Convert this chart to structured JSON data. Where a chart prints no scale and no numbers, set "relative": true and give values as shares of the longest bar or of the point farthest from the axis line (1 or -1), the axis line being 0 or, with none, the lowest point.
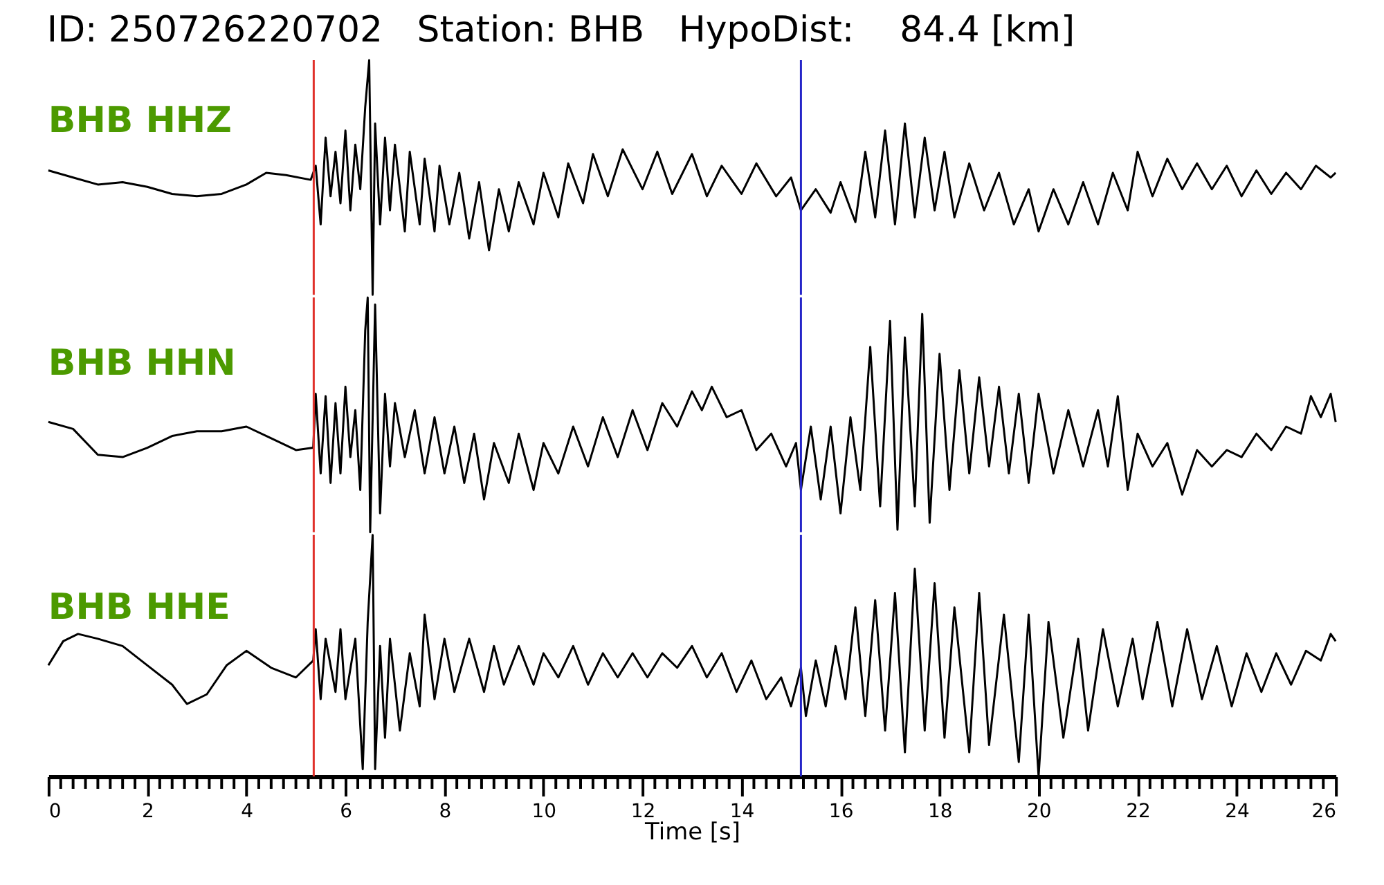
{
  "chart_data": [
    {
      "type": "line",
      "title": "ID: 250726220702   Station: BHB   HypoDist:    84.4 [km]",
      "relative": true,
      "xlim": [
        0,
        26
      ],
      "tick_labels": false,
      "x": [
        0,
        0.5,
        1.0,
        1.5,
        2.0,
        2.5,
        3.0,
        3.5,
        4.0,
        4.4,
        4.8,
        5.3,
        5.4,
        5.5,
        5.6,
        5.7,
        5.8,
        5.9,
        6.0,
        6.1,
        6.2,
        6.3,
        6.4,
        6.48,
        6.55,
        6.6,
        6.7,
        6.8,
        6.9,
        7.0,
        7.2,
        7.3,
        7.5,
        7.6,
        7.8,
        7.9,
        8.1,
        8.3,
        8.5,
        8.7,
        8.9,
        9.1,
        9.3,
        9.5,
        9.8,
        10.0,
        10.3,
        10.5,
        10.8,
        11.0,
        11.3,
        11.6,
        12.0,
        12.3,
        12.6,
        13.0,
        13.3,
        13.6,
        14.0,
        14.3,
        14.7,
        15.0,
        15.2,
        15.5,
        15.8,
        16.0,
        16.3,
        16.5,
        16.7,
        16.9,
        17.1,
        17.3,
        17.5,
        17.7,
        17.9,
        18.1,
        18.3,
        18.6,
        18.9,
        19.2,
        19.5,
        19.8,
        20.0,
        20.3,
        20.6,
        20.9,
        21.2,
        21.5,
        21.8,
        22.0,
        22.3,
        22.6,
        22.9,
        23.2,
        23.5,
        23.8,
        24.1,
        24.4,
        24.7,
        25.0,
        25.3,
        25.6,
        25.9,
        26.0
      ],
      "series": [
        {
          "name": "BHB HHZ",
          "color": "#000000",
          "values": [
            0.53,
            0.5,
            0.47,
            0.48,
            0.46,
            0.43,
            0.42,
            0.43,
            0.47,
            0.52,
            0.51,
            0.49,
            0.55,
            0.3,
            0.67,
            0.42,
            0.61,
            0.39,
            0.7,
            0.36,
            0.64,
            0.45,
            0.8,
            1.0,
            0,
            0.73,
            0.3,
            0.67,
            0.36,
            0.64,
            0.27,
            0.61,
            0.3,
            0.58,
            0.27,
            0.55,
            0.3,
            0.52,
            0.24,
            0.48,
            0.19,
            0.45,
            0.27,
            0.48,
            0.3,
            0.52,
            0.33,
            0.56,
            0.39,
            0.6,
            0.42,
            0.62,
            0.45,
            0.61,
            0.43,
            0.6,
            0.42,
            0.55,
            0.43,
            0.56,
            0.42,
            0.5,
            0.36,
            0.45,
            0.35,
            0.48,
            0.31,
            0.61,
            0.33,
            0.7,
            0.3,
            0.73,
            0.33,
            0.67,
            0.36,
            0.61,
            0.33,
            0.56,
            0.36,
            0.52,
            0.3,
            0.45,
            0.27,
            0.45,
            0.3,
            0.48,
            0.3,
            0.52,
            0.36,
            0.61,
            0.42,
            0.58,
            0.45,
            0.56,
            0.45,
            0.55,
            0.42,
            0.53,
            0.43,
            0.52,
            0.45,
            0.55,
            0.5,
            0.52
          ]
        }
      ],
      "ref_lines": [
        {
          "axis": "x",
          "value": 5.36,
          "color": "#e0302a"
        },
        {
          "axis": "x",
          "value": 15.2,
          "color": "#2424c8"
        }
      ]
    },
    {
      "type": "line",
      "relative": true,
      "xlim": [
        0,
        26
      ],
      "tick_labels": false,
      "x": [
        0,
        0.5,
        1.0,
        1.5,
        2.0,
        2.5,
        3.0,
        3.5,
        4.0,
        4.5,
        5.0,
        5.35,
        5.4,
        5.5,
        5.6,
        5.7,
        5.8,
        5.9,
        6.0,
        6.1,
        6.2,
        6.3,
        6.4,
        6.45,
        6.5,
        6.6,
        6.7,
        6.8,
        6.9,
        7.0,
        7.2,
        7.4,
        7.6,
        7.8,
        8.0,
        8.2,
        8.4,
        8.6,
        8.8,
        9.0,
        9.3,
        9.5,
        9.8,
        10.0,
        10.3,
        10.6,
        10.9,
        11.2,
        11.5,
        11.8,
        12.1,
        12.4,
        12.7,
        13.0,
        13.2,
        13.4,
        13.7,
        14.0,
        14.3,
        14.6,
        14.9,
        15.1,
        15.2,
        15.4,
        15.6,
        15.8,
        16.0,
        16.2,
        16.4,
        16.6,
        16.8,
        17.0,
        17.15,
        17.3,
        17.5,
        17.65,
        17.8,
        18.0,
        18.2,
        18.4,
        18.6,
        18.8,
        19.0,
        19.2,
        19.4,
        19.6,
        19.8,
        20.0,
        20.3,
        20.6,
        20.9,
        21.2,
        21.4,
        21.6,
        21.8,
        22.0,
        22.3,
        22.6,
        22.9,
        23.2,
        23.5,
        23.8,
        24.1,
        24.4,
        24.7,
        25.0,
        25.3,
        25.5,
        25.7,
        25.9,
        26.0
      ],
      "series": [
        {
          "name": "BHB HHN",
          "color": "#000000",
          "values": [
            0.47,
            0.44,
            0.33,
            0.32,
            0.36,
            0.41,
            0.43,
            0.43,
            0.45,
            0.4,
            0.35,
            0.36,
            0.59,
            0.25,
            0.58,
            0.21,
            0.55,
            0.25,
            0.62,
            0.32,
            0.52,
            0.18,
            0.86,
            1.0,
            0,
            0.97,
            0.08,
            0.59,
            0.28,
            0.55,
            0.32,
            0.52,
            0.25,
            0.49,
            0.25,
            0.45,
            0.21,
            0.42,
            0.14,
            0.38,
            0.21,
            0.42,
            0.18,
            0.38,
            0.25,
            0.45,
            0.28,
            0.49,
            0.32,
            0.52,
            0.35,
            0.55,
            0.45,
            0.6,
            0.52,
            0.62,
            0.49,
            0.52,
            0.35,
            0.42,
            0.28,
            0.38,
            0.18,
            0.45,
            0.14,
            0.45,
            0.08,
            0.49,
            0.18,
            0.79,
            0.11,
            0.9,
            0.01,
            0.83,
            0.11,
            0.93,
            0.04,
            0.76,
            0.18,
            0.69,
            0.25,
            0.66,
            0.28,
            0.62,
            0.25,
            0.59,
            0.21,
            0.59,
            0.25,
            0.52,
            0.28,
            0.52,
            0.28,
            0.58,
            0.18,
            0.42,
            0.28,
            0.38,
            0.16,
            0.35,
            0.28,
            0.35,
            0.32,
            0.42,
            0.35,
            0.45,
            0.42,
            0.58,
            0.49,
            0.59,
            0.47
          ]
        }
      ],
      "ref_lines": [
        {
          "axis": "x",
          "value": 5.36,
          "color": "#e0302a"
        },
        {
          "axis": "x",
          "value": 15.2,
          "color": "#2424c8"
        }
      ]
    },
    {
      "type": "line",
      "xlabel": "Time [s]",
      "relative": true,
      "xlim": [
        0,
        26
      ],
      "tick_labels": "x",
      "xticks": [
        0,
        {
          "value": 0.25,
          "label": null
        },
        {
          "value": 0.5,
          "label": null
        },
        {
          "value": 0.75,
          "label": null
        },
        {
          "value": 1,
          "label": null
        },
        {
          "value": 1.25,
          "label": null
        },
        {
          "value": 1.5,
          "label": null
        },
        {
          "value": 1.75,
          "label": null
        },
        2,
        {
          "value": 2.25,
          "label": null
        },
        {
          "value": 2.5,
          "label": null
        },
        {
          "value": 2.75,
          "label": null
        },
        {
          "value": 3,
          "label": null
        },
        {
          "value": 3.25,
          "label": null
        },
        {
          "value": 3.5,
          "label": null
        },
        {
          "value": 3.75,
          "label": null
        },
        4,
        {
          "value": 4.25,
          "label": null
        },
        {
          "value": 4.5,
          "label": null
        },
        {
          "value": 4.75,
          "label": null
        },
        {
          "value": 5,
          "label": null
        },
        {
          "value": 5.25,
          "label": null
        },
        {
          "value": 5.5,
          "label": null
        },
        {
          "value": 5.75,
          "label": null
        },
        6,
        {
          "value": 6.25,
          "label": null
        },
        {
          "value": 6.5,
          "label": null
        },
        {
          "value": 6.75,
          "label": null
        },
        {
          "value": 7,
          "label": null
        },
        {
          "value": 7.25,
          "label": null
        },
        {
          "value": 7.5,
          "label": null
        },
        {
          "value": 7.75,
          "label": null
        },
        8,
        {
          "value": 8.25,
          "label": null
        },
        {
          "value": 8.5,
          "label": null
        },
        {
          "value": 8.75,
          "label": null
        },
        {
          "value": 9,
          "label": null
        },
        {
          "value": 9.25,
          "label": null
        },
        {
          "value": 9.5,
          "label": null
        },
        {
          "value": 9.75,
          "label": null
        },
        10,
        {
          "value": 10.25,
          "label": null
        },
        {
          "value": 10.5,
          "label": null
        },
        {
          "value": 10.75,
          "label": null
        },
        {
          "value": 11,
          "label": null
        },
        {
          "value": 11.25,
          "label": null
        },
        {
          "value": 11.5,
          "label": null
        },
        {
          "value": 11.75,
          "label": null
        },
        12,
        {
          "value": 12.25,
          "label": null
        },
        {
          "value": 12.5,
          "label": null
        },
        {
          "value": 12.75,
          "label": null
        },
        {
          "value": 13,
          "label": null
        },
        {
          "value": 13.25,
          "label": null
        },
        {
          "value": 13.5,
          "label": null
        },
        {
          "value": 13.75,
          "label": null
        },
        14,
        {
          "value": 14.25,
          "label": null
        },
        {
          "value": 14.5,
          "label": null
        },
        {
          "value": 14.75,
          "label": null
        },
        {
          "value": 15,
          "label": null
        },
        {
          "value": 15.25,
          "label": null
        },
        {
          "value": 15.5,
          "label": null
        },
        {
          "value": 15.75,
          "label": null
        },
        16,
        {
          "value": 16.25,
          "label": null
        },
        {
          "value": 16.5,
          "label": null
        },
        {
          "value": 16.75,
          "label": null
        },
        {
          "value": 17,
          "label": null
        },
        {
          "value": 17.25,
          "label": null
        },
        {
          "value": 17.5,
          "label": null
        },
        {
          "value": 17.75,
          "label": null
        },
        18,
        {
          "value": 18.25,
          "label": null
        },
        {
          "value": 18.5,
          "label": null
        },
        {
          "value": 18.75,
          "label": null
        },
        {
          "value": 19,
          "label": null
        },
        {
          "value": 19.25,
          "label": null
        },
        {
          "value": 19.5,
          "label": null
        },
        {
          "value": 19.75,
          "label": null
        },
        20,
        {
          "value": 20.25,
          "label": null
        },
        {
          "value": 20.5,
          "label": null
        },
        {
          "value": 20.75,
          "label": null
        },
        {
          "value": 21,
          "label": null
        },
        {
          "value": 21.25,
          "label": null
        },
        {
          "value": 21.5,
          "label": null
        },
        {
          "value": 21.75,
          "label": null
        },
        22,
        {
          "value": 22.25,
          "label": null
        },
        {
          "value": 22.5,
          "label": null
        },
        {
          "value": 22.75,
          "label": null
        },
        {
          "value": 23,
          "label": null
        },
        {
          "value": 23.25,
          "label": null
        },
        {
          "value": 23.5,
          "label": null
        },
        {
          "value": 23.75,
          "label": null
        },
        24,
        {
          "value": 24.25,
          "label": null
        },
        {
          "value": 24.5,
          "label": null
        },
        {
          "value": 24.75,
          "label": null
        },
        {
          "value": 25,
          "label": null
        },
        {
          "value": 25.25,
          "label": null
        },
        {
          "value": 25.5,
          "label": null
        },
        {
          "value": 25.75,
          "label": null
        },
        26
      ],
      "x": [
        0,
        0.3,
        0.6,
        1.0,
        1.5,
        2.0,
        2.5,
        2.8,
        3.2,
        3.6,
        4.0,
        4.5,
        5.0,
        5.35,
        5.4,
        5.5,
        5.6,
        5.8,
        5.9,
        6.0,
        6.2,
        6.35,
        6.45,
        6.55,
        6.6,
        6.7,
        6.8,
        6.9,
        7.1,
        7.3,
        7.5,
        7.6,
        7.8,
        8.0,
        8.2,
        8.5,
        8.8,
        9.0,
        9.2,
        9.5,
        9.8,
        10.0,
        10.3,
        10.6,
        10.9,
        11.2,
        11.5,
        11.8,
        12.1,
        12.4,
        12.7,
        13.0,
        13.3,
        13.6,
        13.9,
        14.2,
        14.5,
        14.8,
        15.0,
        15.2,
        15.3,
        15.5,
        15.7,
        15.9,
        16.1,
        16.3,
        16.5,
        16.7,
        16.9,
        17.1,
        17.3,
        17.5,
        17.7,
        17.9,
        18.1,
        18.3,
        18.6,
        18.8,
        19.0,
        19.3,
        19.6,
        19.8,
        20.0,
        20.2,
        20.5,
        20.8,
        21.0,
        21.3,
        21.6,
        21.9,
        22.1,
        22.4,
        22.7,
        23.0,
        23.3,
        23.6,
        23.9,
        24.2,
        24.5,
        24.8,
        25.1,
        25.4,
        25.7,
        25.9,
        26.0
      ],
      "series": [
        {
          "name": "BHB HHE",
          "color": "#000000",
          "values": [
            0.46,
            0.56,
            0.59,
            0.57,
            0.54,
            0.46,
            0.38,
            0.3,
            0.34,
            0.46,
            0.52,
            0.45,
            0.41,
            0.48,
            0.61,
            0.32,
            0.57,
            0.35,
            0.61,
            0.32,
            0.57,
            0.03,
            0.64,
            1.0,
            0.03,
            0.54,
            0.16,
            0.57,
            0.19,
            0.51,
            0.29,
            0.67,
            0.32,
            0.57,
            0.35,
            0.57,
            0.35,
            0.54,
            0.38,
            0.54,
            0.38,
            0.51,
            0.41,
            0.54,
            0.38,
            0.51,
            0.41,
            0.51,
            0.41,
            0.51,
            0.45,
            0.54,
            0.41,
            0.51,
            0.35,
            0.48,
            0.32,
            0.41,
            0.29,
            0.45,
            0.25,
            0.48,
            0.29,
            0.54,
            0.32,
            0.7,
            0.25,
            0.73,
            0.19,
            0.76,
            0.1,
            0.86,
            0.19,
            0.8,
            0.16,
            0.7,
            0.1,
            0.76,
            0.13,
            0.67,
            0.06,
            0.67,
            0,
            0.64,
            0.16,
            0.57,
            0.19,
            0.61,
            0.29,
            0.57,
            0.32,
            0.64,
            0.29,
            0.61,
            0.32,
            0.54,
            0.29,
            0.51,
            0.35,
            0.51,
            0.38,
            0.52,
            0.48,
            0.59,
            0.56
          ]
        }
      ],
      "ref_lines": [
        {
          "axis": "x",
          "value": 5.36,
          "color": "#e0302a"
        },
        {
          "axis": "x",
          "value": 15.2,
          "color": "#2424c8"
        }
      ]
    }
  ]
}
